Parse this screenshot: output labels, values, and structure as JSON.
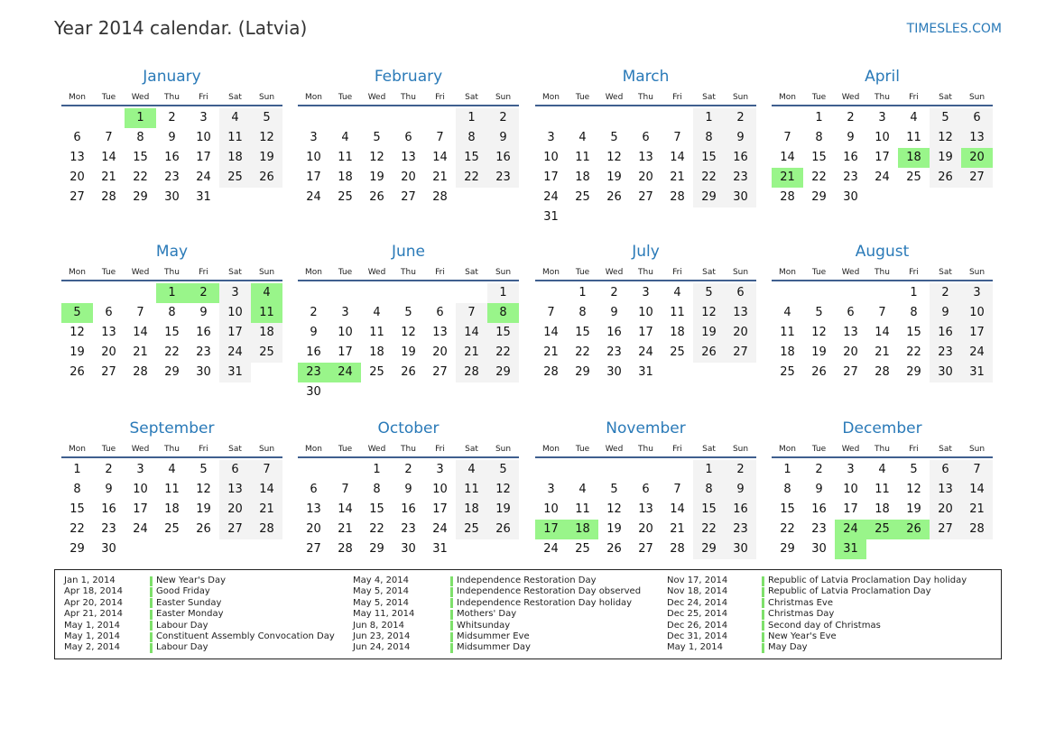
{
  "header": {
    "title": "Year 2014 calendar. (Latvia)",
    "brand": "TIMESLES.COM"
  },
  "year": 2014,
  "weekdays": [
    "Mon",
    "Tue",
    "Wed",
    "Thu",
    "Fri",
    "Sat",
    "Sun"
  ],
  "colors": {
    "accent": "#2a7ab8",
    "holiday": "#99f58a",
    "weekend": "#f3f3f3",
    "rule": "#3f5f8f"
  },
  "months": [
    {
      "name": "January",
      "holidays": [
        1
      ]
    },
    {
      "name": "February",
      "holidays": []
    },
    {
      "name": "March",
      "holidays": []
    },
    {
      "name": "April",
      "holidays": [
        18,
        20,
        21
      ]
    },
    {
      "name": "May",
      "holidays": [
        1,
        2,
        4,
        5,
        11
      ]
    },
    {
      "name": "June",
      "holidays": [
        8,
        23,
        24
      ]
    },
    {
      "name": "July",
      "holidays": []
    },
    {
      "name": "August",
      "holidays": []
    },
    {
      "name": "September",
      "holidays": []
    },
    {
      "name": "October",
      "holidays": []
    },
    {
      "name": "November",
      "holidays": [
        17,
        18
      ]
    },
    {
      "name": "December",
      "holidays": [
        24,
        25,
        26,
        31
      ]
    }
  ],
  "holiday_list": [
    [
      {
        "date": "Jan 1, 2014",
        "name": "New Year's Day"
      },
      {
        "date": "Apr 18, 2014",
        "name": "Good Friday"
      },
      {
        "date": "Apr 20, 2014",
        "name": "Easter Sunday"
      },
      {
        "date": "Apr 21, 2014",
        "name": "Easter Monday"
      },
      {
        "date": "May 1, 2014",
        "name": "Labour Day"
      },
      {
        "date": "May 1, 2014",
        "name": "Constituent Assembly Convocation Day"
      },
      {
        "date": "May 2, 2014",
        "name": "Labour Day"
      }
    ],
    [
      {
        "date": "May 4, 2014",
        "name": "Independence Restoration Day"
      },
      {
        "date": "May 5, 2014",
        "name": "Independence Restoration Day observed"
      },
      {
        "date": "May 5, 2014",
        "name": "Independence Restoration Day holiday"
      },
      {
        "date": "May 11, 2014",
        "name": "Mothers' Day"
      },
      {
        "date": "Jun 8, 2014",
        "name": "Whitsunday"
      },
      {
        "date": "Jun 23, 2014",
        "name": "Midsummer Eve"
      },
      {
        "date": "Jun 24, 2014",
        "name": "Midsummer Day"
      }
    ],
    [
      {
        "date": "Nov 17, 2014",
        "name": "Republic of Latvia Proclamation Day holiday"
      },
      {
        "date": "Nov 18, 2014",
        "name": "Republic of Latvia Proclamation Day"
      },
      {
        "date": "Dec 24, 2014",
        "name": "Christmas Eve"
      },
      {
        "date": "Dec 25, 2014",
        "name": "Christmas Day"
      },
      {
        "date": "Dec 26, 2014",
        "name": "Second day of Christmas"
      },
      {
        "date": "Dec 31, 2014",
        "name": "New Year's Eve"
      },
      {
        "date": "May 1, 2014",
        "name": "May Day"
      }
    ]
  ]
}
